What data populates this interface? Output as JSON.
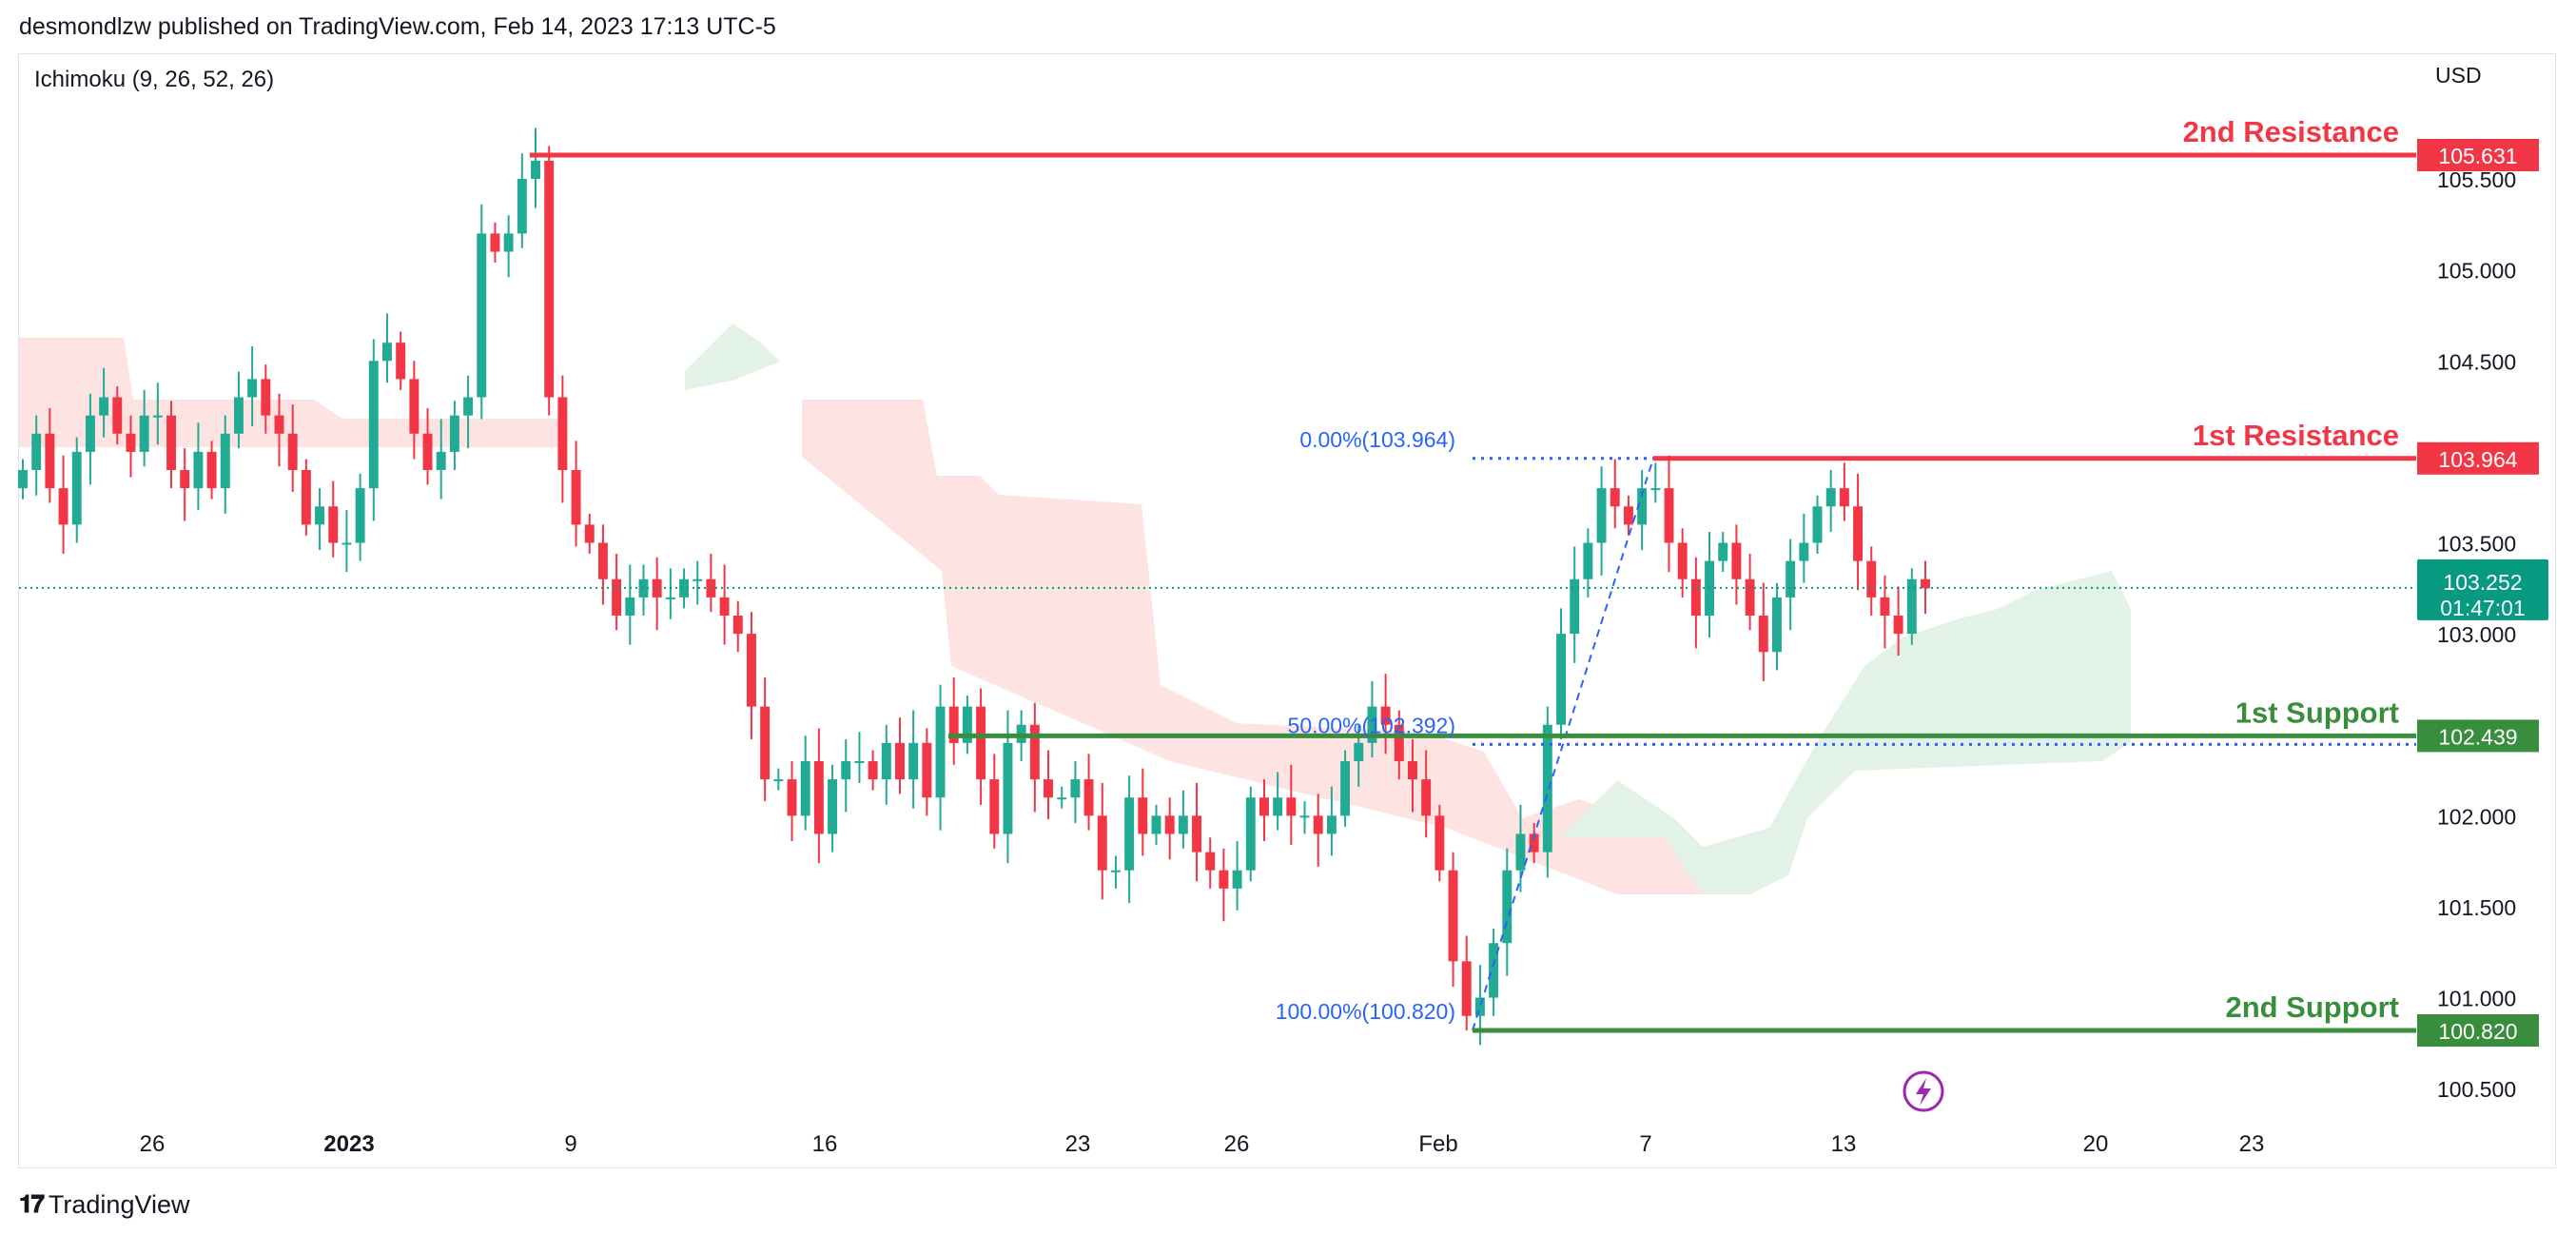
{
  "header": {
    "published": "desmondlzw published on TradingView.com, Feb 14, 2023 17:13 UTC-5"
  },
  "indicator": {
    "label": "Ichimoku (9, 26, 52, 26)"
  },
  "currency": "USD",
  "footer": {
    "brand": "TradingView",
    "logo_icon": "tv-logo-icon"
  },
  "colors": {
    "resistance": "#f23645",
    "support": "#388e3c",
    "fib": "#2962ff",
    "up": "#22ab94",
    "down": "#f23645",
    "cloud_bear": "#fde3e1",
    "cloud_bull": "#e3f2e6",
    "current": "#089981"
  },
  "chart_data": {
    "type": "candlestick",
    "symbol_currency": "USD",
    "ylim": [
      100.2,
      106.0
    ],
    "y_ticks": [
      "105.500",
      "105.000",
      "104.500",
      "103.500",
      "103.000",
      "102.000",
      "101.500",
      "101.000",
      "100.500"
    ],
    "x_ticks": [
      {
        "label": "26",
        "bold": false
      },
      {
        "label": "2023",
        "bold": true
      },
      {
        "label": "9",
        "bold": false
      },
      {
        "label": "16",
        "bold": false
      },
      {
        "label": "23",
        "bold": false
      },
      {
        "label": "26",
        "bold": false
      },
      {
        "label": "Feb",
        "bold": false
      },
      {
        "label": "7",
        "bold": false
      },
      {
        "label": "13",
        "bold": false
      },
      {
        "label": "20",
        "bold": false
      },
      {
        "label": "23",
        "bold": false
      }
    ],
    "levels": [
      {
        "name": "2nd Resistance",
        "value": 105.631,
        "label": "105.631",
        "kind": "resistance"
      },
      {
        "name": "1st Resistance",
        "value": 103.964,
        "label": "103.964",
        "kind": "resistance"
      },
      {
        "name": "1st Support",
        "value": 102.439,
        "label": "102.439",
        "kind": "support"
      },
      {
        "name": "2nd Support",
        "value": 100.82,
        "label": "100.820",
        "kind": "support"
      }
    ],
    "fibonacci": [
      {
        "label": "0.00%(103.964)",
        "value": 103.964
      },
      {
        "label": "50.00%(102.392)",
        "value": 102.392
      },
      {
        "label": "100.00%(100.820)",
        "value": 100.82
      }
    ],
    "current_price": {
      "label": "103.252",
      "countdown": "01:47:01",
      "value": 103.252
    },
    "series_close": [
      103.9,
      104.1,
      103.8,
      103.6,
      104.0,
      104.2,
      104.3,
      104.1,
      104.0,
      104.2,
      104.2,
      103.9,
      103.8,
      104.0,
      103.8,
      104.1,
      104.3,
      104.4,
      104.2,
      104.1,
      103.9,
      103.6,
      103.7,
      103.5,
      103.5,
      103.8,
      104.5,
      104.6,
      104.4,
      104.1,
      103.9,
      104.0,
      104.2,
      104.3,
      105.2,
      105.1,
      105.2,
      105.5,
      105.6,
      104.3,
      103.9,
      103.6,
      103.5,
      103.3,
      103.1,
      103.2,
      103.3,
      103.2,
      103.2,
      103.3,
      103.3,
      103.2,
      103.1,
      103.0,
      102.6,
      102.2,
      102.2,
      102.0,
      102.3,
      101.9,
      102.2,
      102.3,
      102.3,
      102.2,
      102.4,
      102.2,
      102.4,
      102.1,
      102.6,
      102.4,
      102.6,
      102.2,
      101.9,
      102.4,
      102.5,
      102.2,
      102.1,
      102.1,
      102.2,
      102.0,
      101.7,
      101.7,
      102.1,
      101.9,
      102.0,
      101.9,
      102.0,
      101.8,
      101.7,
      101.6,
      101.7,
      102.1,
      102.0,
      102.1,
      102.0,
      102.0,
      101.9,
      102.0,
      102.3,
      102.4,
      102.6,
      102.5,
      102.3,
      102.2,
      102.0,
      101.7,
      101.2,
      100.9,
      101.0,
      101.3,
      101.7,
      101.9,
      101.8,
      102.5,
      103.0,
      103.3,
      103.5,
      103.8,
      103.7,
      103.6,
      103.8,
      103.8,
      103.5,
      103.3,
      103.1,
      103.4,
      103.5,
      103.3,
      103.1,
      102.9,
      103.2,
      103.4,
      103.5,
      103.7,
      103.8,
      103.7,
      103.4,
      103.2,
      103.1,
      103.0,
      103.3,
      103.25
    ]
  }
}
